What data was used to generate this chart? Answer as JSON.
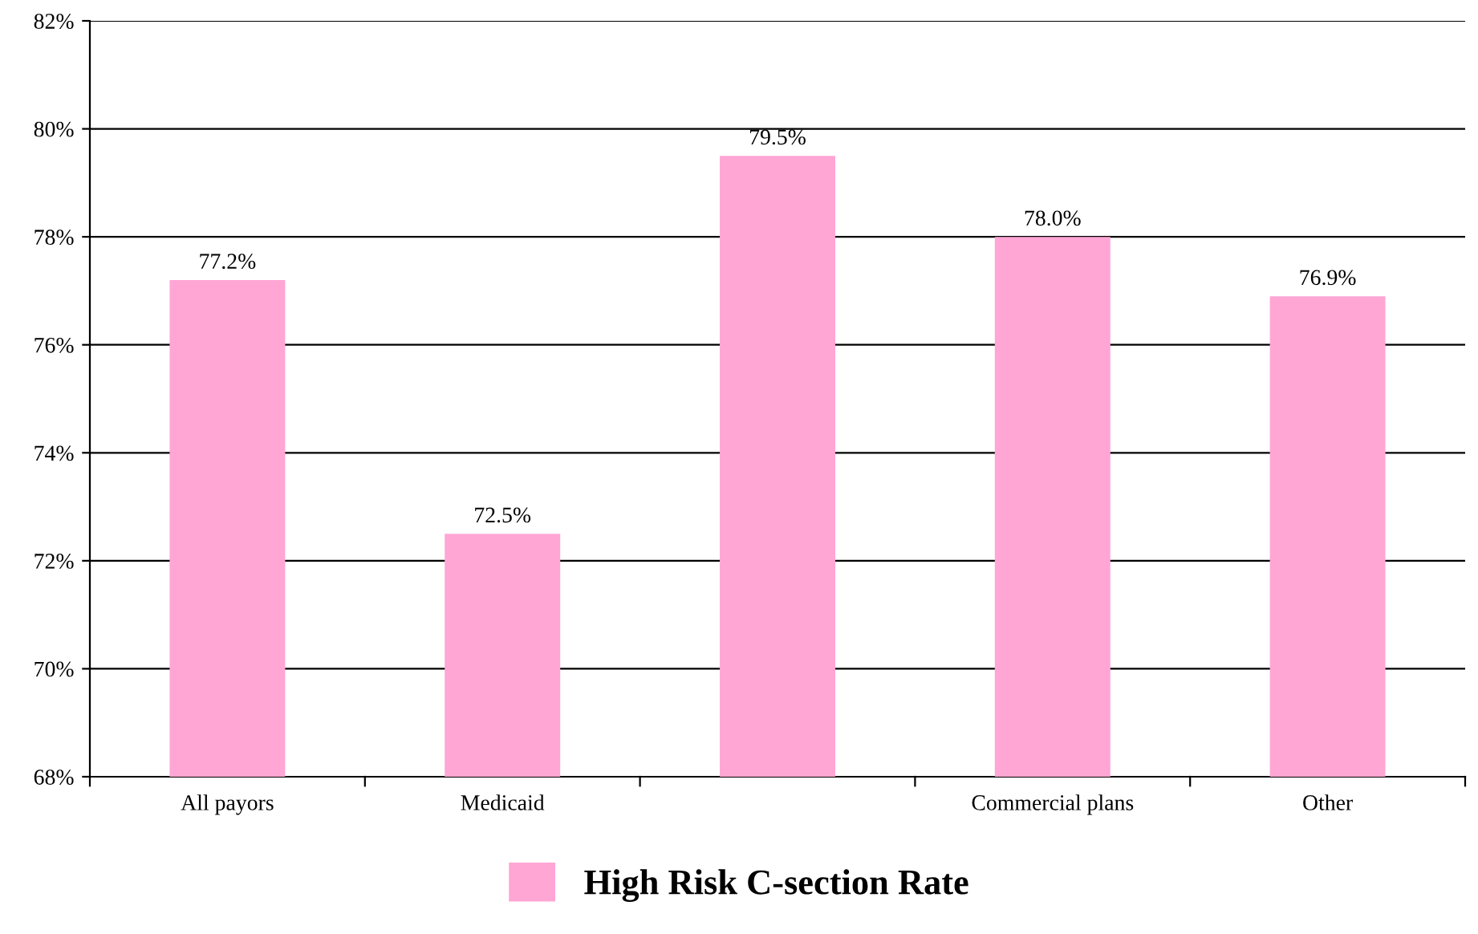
{
  "chart_data": {
    "type": "bar",
    "categories": [
      "All payors",
      "Medicaid",
      null,
      "Commercial plans",
      "Other"
    ],
    "series": [
      {
        "name": "High Risk C-section Rate",
        "color": "#ffa6d5",
        "values": [
          77.2,
          72.5,
          79.5,
          78.0,
          76.9
        ],
        "value_labels": [
          "77.2%",
          "72.5%",
          "79.5%",
          "78.0%",
          "76.9%"
        ]
      }
    ],
    "ylim": [
      68,
      82
    ],
    "yticks": [
      {
        "value": 68,
        "label": "68%"
      },
      {
        "value": 70,
        "label": "70%"
      },
      {
        "value": 72,
        "label": "72%"
      },
      {
        "value": 74,
        "label": "74%"
      },
      {
        "value": 76,
        "label": "76%"
      },
      {
        "value": 78,
        "label": "78%"
      },
      {
        "value": 80,
        "label": "80%"
      },
      {
        "value": 82,
        "label": "82%"
      }
    ],
    "grid": "y",
    "legend": "bottom"
  }
}
